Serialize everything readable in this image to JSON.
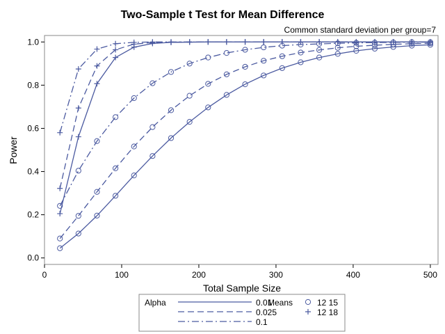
{
  "chart_data": {
    "type": "line",
    "title": "Two-Sample t Test for Mean Difference",
    "subtitle": "Common standard deviation per group=7",
    "xlabel": "Total Sample Size",
    "ylabel": "Power",
    "xlim": [
      0,
      510
    ],
    "ylim": [
      -0.03,
      1.03
    ],
    "xticks": [
      0,
      100,
      200,
      300,
      400,
      500
    ],
    "yticks": [
      0.0,
      0.2,
      0.4,
      0.6,
      0.8,
      1.0
    ],
    "xtick_labels": [
      "0",
      "100",
      "200",
      "300",
      "400",
      "500"
    ],
    "ytick_labels": [
      "0.0",
      "0.2",
      "0.4",
      "0.6",
      "0.8",
      "1.0"
    ],
    "grid": false,
    "line_color": "#4b5aa0",
    "legend": {
      "position": "bottom",
      "alpha_title": "Alpha",
      "means_title": "Means",
      "alpha_items": [
        {
          "label": "0.01",
          "dash": "solid"
        },
        {
          "label": "0.025",
          "dash": "dash"
        },
        {
          "label": "0.1",
          "dash": "dashdot"
        }
      ],
      "means_items": [
        {
          "label": "12 15",
          "marker": "circle"
        },
        {
          "label": "12 18",
          "marker": "plus"
        }
      ]
    },
    "series": [
      {
        "alpha": "0.01",
        "means": "12 15",
        "x": [
          20,
          44,
          68,
          92,
          116,
          140,
          164,
          188,
          212,
          236,
          260,
          284,
          308,
          332,
          356,
          380,
          404,
          428,
          452,
          476,
          500
        ],
        "y": [
          0.045,
          0.113,
          0.196,
          0.288,
          0.382,
          0.472,
          0.555,
          0.63,
          0.697,
          0.755,
          0.804,
          0.845,
          0.879,
          0.906,
          0.928,
          0.945,
          0.959,
          0.969,
          0.977,
          0.983,
          0.987
        ]
      },
      {
        "alpha": "0.025",
        "means": "12 15",
        "x": [
          20,
          44,
          68,
          92,
          116,
          140,
          164,
          188,
          212,
          236,
          260,
          284,
          308,
          332,
          356,
          380,
          404,
          428,
          452,
          476,
          500
        ],
        "y": [
          0.09,
          0.195,
          0.306,
          0.415,
          0.516,
          0.606,
          0.684,
          0.751,
          0.806,
          0.85,
          0.885,
          0.913,
          0.934,
          0.951,
          0.963,
          0.973,
          0.98,
          0.985,
          0.989,
          0.992,
          0.994
        ]
      },
      {
        "alpha": "0.1",
        "means": "12 15",
        "x": [
          20,
          44,
          68,
          92,
          116,
          140,
          164,
          188,
          212,
          236,
          260,
          284,
          308,
          332,
          356,
          380,
          404,
          428,
          452,
          476,
          500
        ],
        "y": [
          0.241,
          0.404,
          0.541,
          0.652,
          0.74,
          0.809,
          0.861,
          0.9,
          0.928,
          0.949,
          0.964,
          0.975,
          0.983,
          0.988,
          0.991,
          0.994,
          0.996,
          0.997,
          0.998,
          0.999,
          0.999
        ]
      },
      {
        "alpha": "0.01",
        "means": "12 18",
        "x": [
          20,
          44,
          68,
          92,
          116,
          140,
          164,
          188,
          212,
          236,
          260,
          284,
          308,
          332,
          356,
          380,
          404,
          428,
          452,
          476,
          500
        ],
        "y": [
          0.205,
          0.561,
          0.807,
          0.928,
          0.976,
          0.993,
          0.998,
          0.999,
          1.0,
          1.0,
          1.0,
          1.0,
          1.0,
          1.0,
          1.0,
          1.0,
          1.0,
          1.0,
          1.0,
          1.0,
          1.0
        ]
      },
      {
        "alpha": "0.025",
        "means": "12 18",
        "x": [
          20,
          44,
          68,
          92,
          116,
          140,
          164,
          188,
          212,
          236,
          260,
          284,
          308,
          332,
          356,
          380,
          404,
          428,
          452,
          476,
          500
        ],
        "y": [
          0.322,
          0.694,
          0.889,
          0.964,
          0.99,
          0.997,
          0.999,
          1.0,
          1.0,
          1.0,
          1.0,
          1.0,
          1.0,
          1.0,
          1.0,
          1.0,
          1.0,
          1.0,
          1.0,
          1.0,
          1.0
        ]
      },
      {
        "alpha": "0.1",
        "means": "12 18",
        "x": [
          20,
          44,
          68,
          92,
          116,
          140,
          164,
          188,
          212,
          236,
          260,
          284,
          308,
          332,
          356,
          380,
          404,
          428,
          452,
          476,
          500
        ],
        "y": [
          0.58,
          0.875,
          0.967,
          0.992,
          0.998,
          1.0,
          1.0,
          1.0,
          1.0,
          1.0,
          1.0,
          1.0,
          1.0,
          1.0,
          1.0,
          1.0,
          1.0,
          1.0,
          1.0,
          1.0,
          1.0
        ]
      }
    ]
  }
}
